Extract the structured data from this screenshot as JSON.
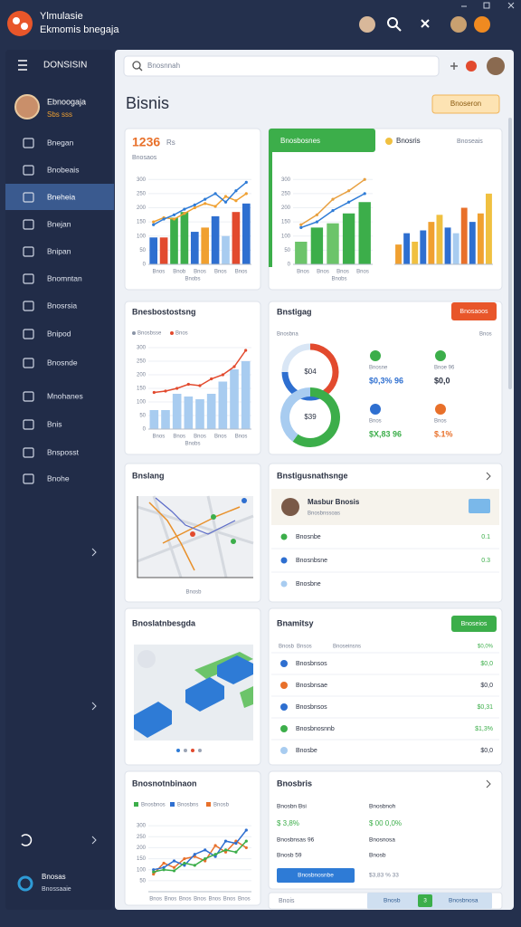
{
  "header": {
    "title_line1": "Ylmulasie",
    "title_line2": "Ekmomis bnegaja"
  },
  "sidebar": {
    "title": "DONSISIN",
    "user_name": "Ebnoogaja",
    "user_sub": "Sbs sss",
    "nav": [
      "Bnegan",
      "Bnobeais",
      "Bneheia",
      "Bnejan",
      "Bnipan",
      "Bnomntan",
      "Bnosrsia",
      "Bnipod",
      "Bnosnde",
      "Mnohanes",
      "Bnis",
      "Bnsposst",
      "Bnohe"
    ],
    "active": 2,
    "footer_name": "Bnosas",
    "footer_sub": "Bnossaaie"
  },
  "search": {
    "placeholder": "Bnosnnah"
  },
  "page": {
    "title": "Bisnis",
    "action": "Bnoseron"
  },
  "cards": {
    "a": {
      "kpi": "1236",
      "kpi_unit": "Rs",
      "sub": "Bnosaos",
      "caption": "Bnobs",
      "chart": {
        "ylim": [
          0,
          320
        ],
        "yticks": [
          0,
          50,
          100,
          150,
          200,
          250,
          300
        ],
        "xlabels": [
          "Bnos",
          "Bnob",
          "Bnos",
          "Bnos",
          "Bnos"
        ],
        "bars": {
          "values": [
            95,
            95,
            165,
            185,
            115,
            130,
            170,
            100,
            185,
            215
          ],
          "colors": [
            "#2e6fd0",
            "#e24a2e",
            "#3cae4a",
            "#3cae4a",
            "#2e6fd0",
            "#f0a030",
            "#2e6fd0",
            "#a8ccf0",
            "#e24a2e",
            "#2e6fd0"
          ]
        },
        "lines": [
          {
            "color": "#f0a030",
            "values": [
              150,
              165,
              160,
              180,
              200,
              215,
              205,
              240,
              225,
              250
            ]
          },
          {
            "color": "#2e7bd6",
            "values": [
              140,
              160,
              175,
              195,
              210,
              230,
              250,
              220,
              260,
              290
            ]
          }
        ]
      }
    },
    "b": {
      "header": "Bnosbosnes",
      "tab1": "Bnosris",
      "tab2": "Bnoseais",
      "caption": "Bnobs",
      "chart1": {
        "ylim": [
          0,
          320
        ],
        "yticks": [
          0,
          50,
          100,
          150,
          200,
          250,
          300
        ],
        "xlabels": [
          "Bnos",
          "Bnos",
          "Bnos",
          "Bnos"
        ],
        "bars": {
          "values": [
            80,
            130,
            145,
            180,
            220
          ],
          "colors": [
            "#6cc46a",
            "#3cae4a",
            "#6cc46a",
            "#3cae4a",
            "#3cae4a"
          ]
        },
        "lines": [
          {
            "color": "#e8a040",
            "values": [
              140,
              175,
              230,
              260,
              300
            ]
          },
          {
            "color": "#2e7bd6",
            "values": [
              130,
              150,
              190,
              220,
              250
            ]
          }
        ]
      },
      "chart2": {
        "ylim": [
          0,
          320
        ],
        "bars": {
          "values": [
            70,
            110,
            80,
            120,
            150,
            175,
            130,
            110,
            200,
            150,
            180,
            250
          ],
          "colors": [
            "#f0a030",
            "#2e6fd0",
            "#f0c040",
            "#2e6fd0",
            "#f0a030",
            "#f0c040",
            "#2e6fd0",
            "#a8ccf0",
            "#e8702a",
            "#2e6fd0",
            "#f0a030",
            "#f0c040"
          ]
        }
      }
    },
    "c": {
      "title": "Bnesbostostsng",
      "caption": "Bnobs",
      "legend": [
        {
          "name": "Bnosbsse",
          "color": "#8a94a6"
        },
        {
          "name": "Bnos",
          "color": "#e24a2e"
        }
      ],
      "chart": {
        "ylim": [
          0,
          320
        ],
        "yticks": [
          0,
          50,
          100,
          150,
          200,
          250,
          300
        ],
        "xlabels": [
          "Bnos",
          "Bnos",
          "Bnos",
          "Bnos",
          "Bnos"
        ],
        "bars": {
          "values": [
            70,
            70,
            130,
            120,
            110,
            130,
            175,
            220,
            250
          ],
          "color": "#a8ccf0"
        },
        "lines": [
          {
            "color": "#e24a2e",
            "values": [
              135,
              140,
              150,
              165,
              160,
              185,
              200,
              230,
              290
            ]
          }
        ]
      }
    },
    "d": {
      "title": "Bnstigag",
      "button": "Bnosaoos",
      "sub_left": "Bnosbna",
      "sub_right": "Bnos",
      "donuts": [
        {
          "values": [
            40,
            35,
            25
          ],
          "colors": [
            "#e24a2e",
            "#2e6fd0",
            "#d9e6f5"
          ],
          "center": "$04"
        },
        {
          "values": [
            60,
            40
          ],
          "colors": [
            "#3cae4a",
            "#a8ccf0"
          ],
          "center": "$39"
        }
      ],
      "stats": [
        {
          "label": "Bnosne",
          "value": "$0,3% 96",
          "color": "#3cae4a",
          "value_color": "#2e6fd0"
        },
        {
          "label": "Bnoe 96",
          "value": "$0,0",
          "color": "#3cae4a",
          "value_color": "#2a3142"
        },
        {
          "label": "Bnos",
          "value": "$X,83 96",
          "color": "#2e6fd0",
          "value_color": "#3cae4a"
        },
        {
          "label": "Bnos",
          "value": "$.1%",
          "color": "#e8702a",
          "value_color": "#e8702a"
        }
      ]
    },
    "e": {
      "title": "Bnslang",
      "caption": "Bnosb"
    },
    "f": {
      "title": "Bnstigusnathsnge",
      "person_name": "Masbur Bnosis",
      "person_sub": "Bnosbnssoas",
      "rows": [
        {
          "label": "Bnosnbe",
          "value": "0.1",
          "color": "#3cae4a"
        },
        {
          "label": "Bnosnbsne",
          "value": "0.3",
          "color": "#2e6fd0"
        },
        {
          "label": "Bnosbne",
          "color": "#a8ccf0"
        }
      ]
    },
    "g": {
      "title": "Bnoslatnbesgda"
    },
    "h": {
      "title": "Bnamitsy",
      "button": "Bnoseios",
      "head": [
        "Bnosb",
        "Bnsos",
        "Bnoseinsns",
        "$0,0%"
      ],
      "rows": [
        {
          "label": "Bnosbnsos",
          "value": "$0,0",
          "color": "#2e6fd0",
          "value_color": "#3cae4a"
        },
        {
          "label": "Bnosbnsae",
          "value": "$0,0",
          "color": "#e8702a",
          "value_color": "#2a3142"
        },
        {
          "label": "Bnosbnsos",
          "value": "$0,31",
          "color": "#2e6fd0",
          "value_color": "#3cae4a"
        },
        {
          "label": "Bnosbnosnnb",
          "value": "$1,3%",
          "color": "#3cae4a",
          "value_color": "#3cae4a"
        },
        {
          "label": "Bnosbe",
          "value": "$0,0",
          "color": "#a8ccf0",
          "value_color": "#2a3142"
        }
      ]
    },
    "i": {
      "title": "Bnosnotnbinaon",
      "legend": [
        {
          "name": "Bnosbnos",
          "color": "#3cae4a"
        },
        {
          "name": "Bnosbns",
          "color": "#2e6fd0"
        },
        {
          "name": "Bnosb",
          "color": "#e8702a"
        }
      ],
      "chart": {
        "ylim": [
          0,
          350
        ],
        "yticks": [
          50,
          100,
          150,
          200,
          250,
          300
        ],
        "xlabels": [
          "Bnos",
          "Bnos",
          "Bnos",
          "Bnos",
          "Bnos",
          "Bnos",
          "Bnos"
        ],
        "lines": [
          {
            "color": "#e8702a",
            "values": [
              80,
              130,
              110,
              150,
              160,
              140,
              210,
              180,
              230,
              200
            ]
          },
          {
            "color": "#2e6fd0",
            "values": [
              100,
              110,
              140,
              120,
              170,
              190,
              160,
              230,
              220,
              280
            ]
          },
          {
            "color": "#3cae4a",
            "values": [
              90,
              100,
              95,
              130,
              120,
              150,
              170,
              190,
              180,
              230
            ]
          }
        ]
      }
    },
    "j": {
      "title": "Bnosbris",
      "left": [
        "Bnosbn Bsi",
        "$ 3,8%",
        "Bnosbnsas 96",
        "Bnosb 59"
      ],
      "right": [
        "Bnosbnoh",
        "$ 00 0,0%",
        "Bnosnosa",
        "Bnosb"
      ],
      "button": "Bnosbnosnbe",
      "note": "$3,83 % 33"
    }
  },
  "footer": {
    "label": "Bnois",
    "pager": [
      "Bnosb",
      "3",
      "Bnosbnosa"
    ]
  }
}
